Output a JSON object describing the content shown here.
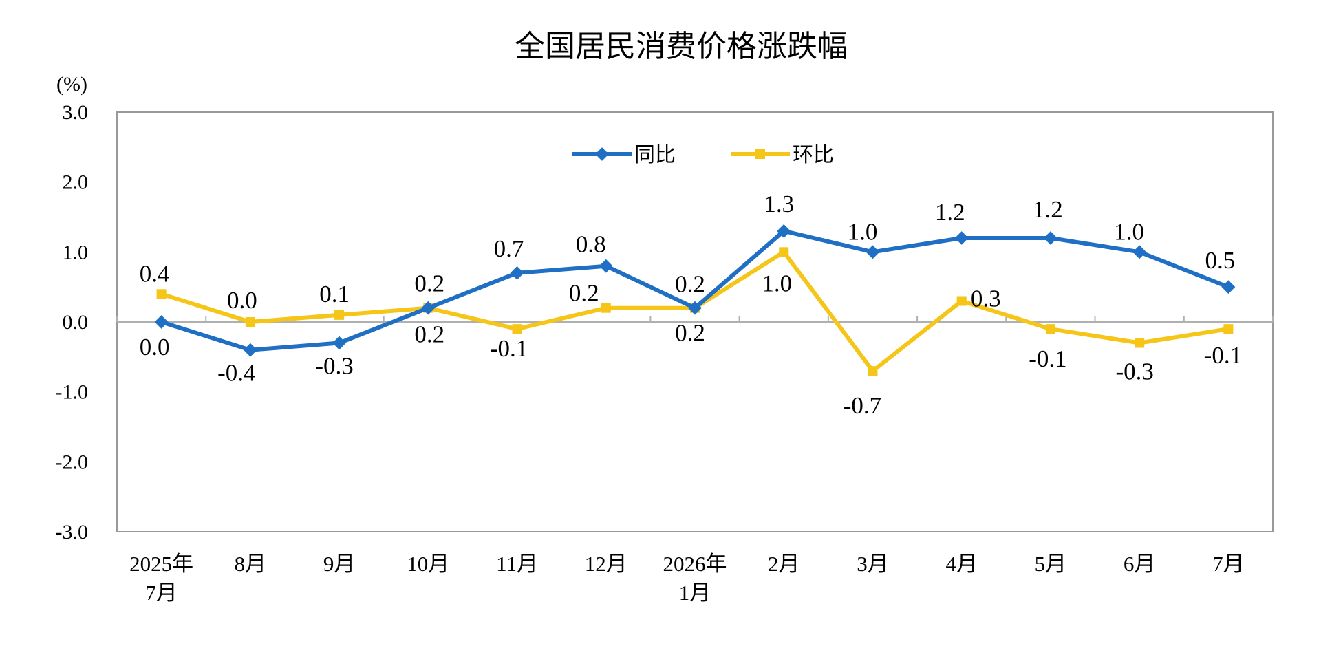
{
  "chart_data": {
    "type": "line",
    "title": "全国居民消费价格涨跌幅",
    "unit_label": "(%)",
    "ylim": [
      -3.0,
      3.0
    ],
    "yticks": [
      "3.0",
      "2.0",
      "1.0",
      "0.0",
      "-1.0",
      "-2.0",
      "-3.0"
    ],
    "categories": [
      [
        "2025年",
        "7月"
      ],
      [
        "8月"
      ],
      [
        "9月"
      ],
      [
        "10月"
      ],
      [
        "11月"
      ],
      [
        "12月"
      ],
      [
        "2026年",
        "1月"
      ],
      [
        "2月"
      ],
      [
        "3月"
      ],
      [
        "4月"
      ],
      [
        "5月"
      ],
      [
        "6月"
      ],
      [
        "7月"
      ]
    ],
    "legend_position": "top-center",
    "grid": false,
    "series": [
      {
        "name": "同比",
        "color": "#1F6FC5",
        "marker": "diamond",
        "values": [
          0.0,
          -0.4,
          -0.3,
          0.2,
          0.7,
          0.8,
          0.2,
          1.3,
          1.0,
          1.2,
          1.2,
          1.0,
          0.5
        ],
        "labels": [
          "0.0",
          "-0.4",
          "-0.3",
          "0.2",
          "0.7",
          "0.8",
          "0.2",
          "1.3",
          "1.0",
          "1.2",
          "1.2",
          "1.0",
          "0.5"
        ]
      },
      {
        "name": "环比",
        "color": "#F5C518",
        "marker": "square",
        "values": [
          0.4,
          0.0,
          0.1,
          0.2,
          -0.1,
          0.2,
          0.2,
          1.0,
          -0.7,
          0.3,
          -0.1,
          -0.3,
          -0.1
        ],
        "labels": [
          "0.4",
          "0.0",
          "0.1",
          "0.2",
          "-0.1",
          "0.2",
          "0.2",
          "1.0",
          "-0.7",
          "0.3",
          "-0.1",
          "-0.3",
          "-0.1"
        ]
      }
    ]
  }
}
